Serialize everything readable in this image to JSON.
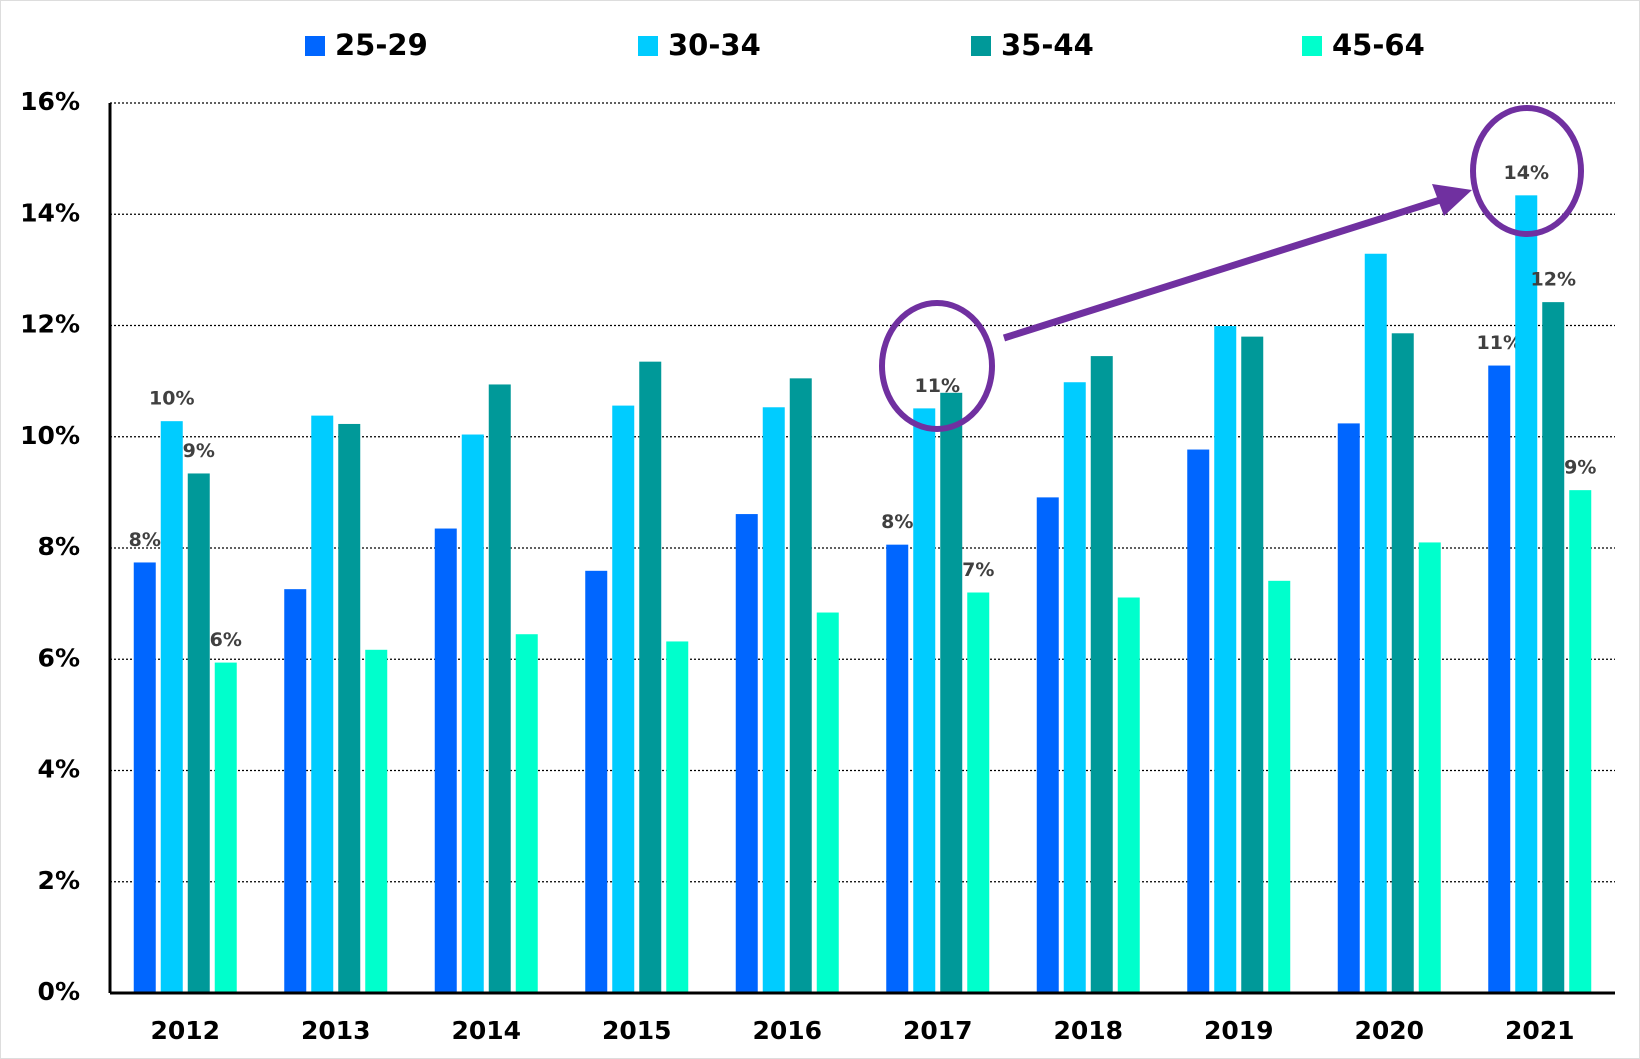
{
  "chart_data": {
    "type": "bar",
    "categories": [
      "2012",
      "2013",
      "2014",
      "2015",
      "2016",
      "2017",
      "2018",
      "2019",
      "2020",
      "2021"
    ],
    "series": [
      {
        "name": "25-29",
        "color": "#0066ff",
        "values": [
          7.74,
          7.26,
          8.35,
          7.59,
          8.61,
          8.06,
          8.91,
          9.77,
          10.24,
          11.28
        ],
        "value_labels": [
          "8%",
          null,
          null,
          null,
          null,
          "8%",
          null,
          null,
          null,
          "11%"
        ]
      },
      {
        "name": "30-34",
        "color": "#00ccff",
        "values": [
          10.28,
          10.38,
          10.04,
          10.56,
          10.53,
          10.51,
          10.98,
          11.99,
          13.29,
          14.34
        ],
        "value_labels": [
          "10%",
          null,
          null,
          null,
          null,
          "11%",
          null,
          null,
          null,
          "14%"
        ]
      },
      {
        "name": "35-44",
        "color": "#009999",
        "values": [
          9.34,
          10.23,
          10.94,
          11.35,
          11.05,
          10.79,
          11.45,
          11.8,
          11.86,
          12.42
        ],
        "value_labels": [
          "9%",
          null,
          null,
          null,
          null,
          null,
          null,
          null,
          null,
          "12%"
        ]
      },
      {
        "name": "45-64",
        "color": "#00ffcc",
        "values": [
          5.94,
          6.17,
          6.45,
          6.32,
          6.84,
          7.2,
          7.11,
          7.41,
          8.1,
          9.04
        ],
        "value_labels": [
          "6%",
          null,
          null,
          null,
          null,
          "7%",
          null,
          null,
          null,
          "9%"
        ]
      }
    ],
    "ylim": [
      0,
      16
    ],
    "yticks": [
      {
        "value": 0,
        "label": "0%"
      },
      {
        "value": 2,
        "label": "2%"
      },
      {
        "value": 4,
        "label": "4%"
      },
      {
        "value": 6,
        "label": "6%"
      },
      {
        "value": 8,
        "label": "8%"
      },
      {
        "value": 10,
        "label": "10%"
      },
      {
        "value": 12,
        "label": "12%"
      },
      {
        "value": 14,
        "label": "14%"
      },
      {
        "value": 16,
        "label": "16%"
      }
    ],
    "grid": true,
    "legend": "top"
  }
}
